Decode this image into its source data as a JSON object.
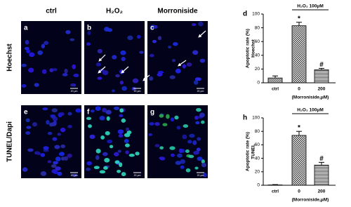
{
  "columns": [
    "ctrl",
    "H₂O₂",
    "Morroniside"
  ],
  "rows": [
    "Hoechst",
    "TUNEL/Dapi"
  ],
  "panels": [
    {
      "letter": "a",
      "scale_bar": "20 μm"
    },
    {
      "letter": "b",
      "scale_bar": "20 μm"
    },
    {
      "letter": "c",
      "scale_bar": "20 μm"
    },
    {
      "letter": "e",
      "scale_bar": "20 μm"
    },
    {
      "letter": "f",
      "scale_bar": "20 μm"
    },
    {
      "letter": "g",
      "scale_bar": "20 μm"
    }
  ],
  "chart_data": [
    {
      "type": "bar",
      "panel": "d",
      "bracket_label": "H₂O₂ 100μM",
      "ylabel": [
        "Apoptotic rate (%)",
        "Hoechst"
      ],
      "categories": [
        "ctrl",
        "0",
        "200"
      ],
      "x_note": "(Morroniside,μM)",
      "values": [
        7,
        83,
        19
      ],
      "errors": [
        3,
        5,
        2
      ],
      "value_annotations": [
        null,
        "*",
        "#"
      ],
      "ylim": [
        0,
        100
      ],
      "yticks": [
        0,
        20,
        40,
        60,
        80,
        100
      ],
      "color": "#000000"
    },
    {
      "type": "bar",
      "panel": "h",
      "bracket_label": "H₂O₂ 100μM",
      "ylabel": [
        "Apoptotic rate (%)",
        "TUNEL"
      ],
      "categories": [
        "ctrl",
        "0",
        "200"
      ],
      "x_note": "(Morroniside,μM)",
      "values": [
        0.5,
        74,
        30
      ],
      "errors": [
        0.5,
        6,
        4
      ],
      "value_annotations": [
        null,
        "*",
        "#"
      ],
      "ylim": [
        0,
        100
      ],
      "yticks": [
        0,
        20,
        40,
        60,
        80,
        100
      ],
      "color": "#000000"
    }
  ]
}
